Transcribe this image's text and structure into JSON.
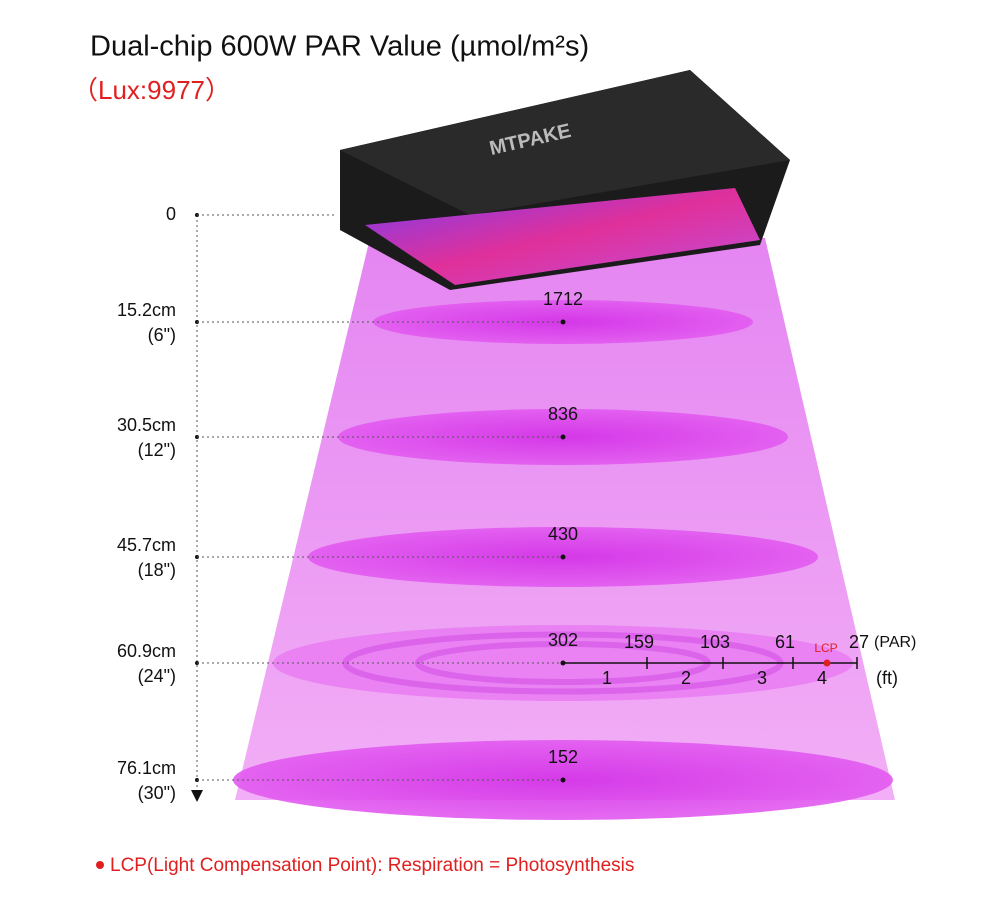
{
  "header": {
    "title": "Dual-chip 600W PAR Value (µmol/m²s)",
    "subtitle": "（Lux:9977）"
  },
  "brand": "MTPAKE",
  "levels": [
    {
      "distance": "0"
    },
    {
      "distance": "15.2cm",
      "inches": "(6\")",
      "par": 1712
    },
    {
      "distance": "30.5cm",
      "inches": "(12\")",
      "par": 836
    },
    {
      "distance": "45.7cm",
      "inches": "(18\")",
      "par": 430
    },
    {
      "distance": "60.9cm",
      "inches": "(24\")",
      "par": 302
    },
    {
      "distance": "76.1cm",
      "inches": "(30\")",
      "par": 152
    }
  ],
  "spread": {
    "par": [
      159,
      103,
      61,
      27
    ],
    "par_unit": "(PAR)",
    "feet": [
      1,
      2,
      3,
      4
    ],
    "feet_unit": "(ft)",
    "lcp": "LCP"
  },
  "footnote": "LCP(Light Compensation Point): Respiration = Photosynthesis"
}
